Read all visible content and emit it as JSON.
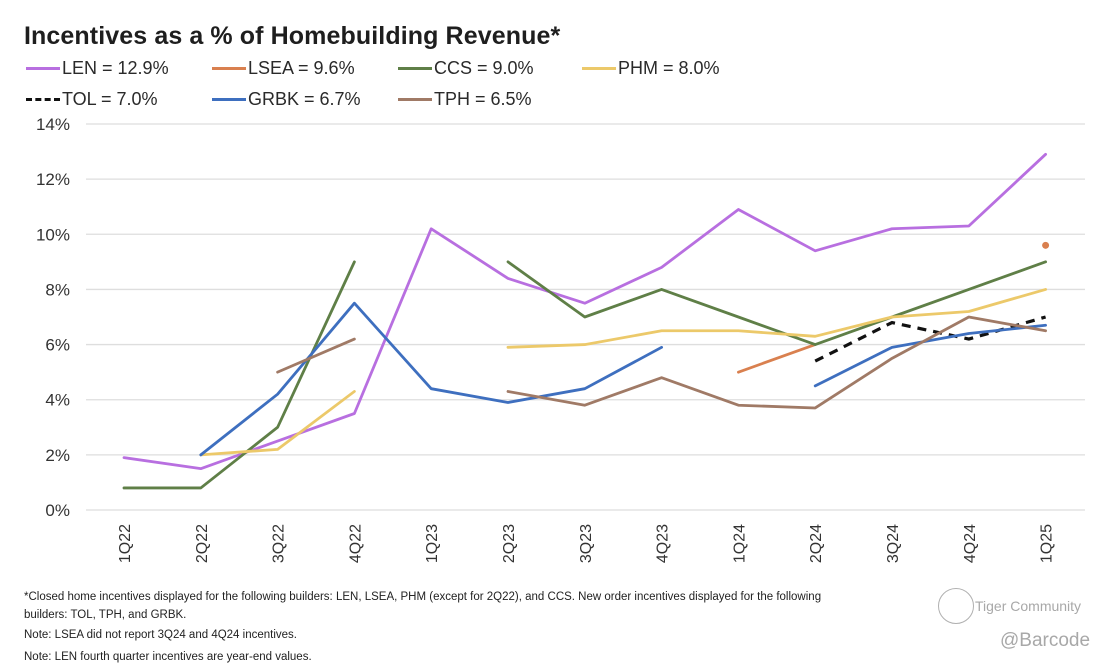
{
  "chart_data": {
    "type": "line",
    "title": "Incentives as a % of Homebuilding Revenue*",
    "xlabel": "",
    "ylabel": "",
    "categories": [
      "1Q22",
      "2Q22",
      "3Q22",
      "4Q22",
      "1Q23",
      "2Q23",
      "3Q23",
      "4Q23",
      "1Q24",
      "2Q24",
      "3Q24",
      "4Q24",
      "1Q25"
    ],
    "y_ticks": [
      "0%",
      "2%",
      "4%",
      "6%",
      "8%",
      "10%",
      "12%",
      "14%"
    ],
    "ylim": [
      0,
      14
    ],
    "grid": true,
    "legend_position": "top-left",
    "series": [
      {
        "name": "LEN",
        "legend": "LEN = 12.9%",
        "color": "#b86fe0",
        "dashed": false,
        "values": [
          1.9,
          1.5,
          2.5,
          3.5,
          10.2,
          8.4,
          7.5,
          8.8,
          10.9,
          9.4,
          10.2,
          10.3,
          12.9
        ]
      },
      {
        "name": "LSEA",
        "legend": "LSEA = 9.6%",
        "color": "#d9804f",
        "dashed": false,
        "values": [
          null,
          null,
          null,
          null,
          null,
          null,
          null,
          null,
          5.0,
          6.0,
          null,
          null,
          9.6
        ]
      },
      {
        "name": "CCS",
        "legend": "CCS = 9.0%",
        "color": "#5f7f47",
        "dashed": false,
        "values": [
          0.8,
          0.8,
          3.0,
          9.0,
          null,
          9.0,
          7.0,
          8.0,
          7.0,
          6.0,
          7.0,
          8.0,
          9.0
        ]
      },
      {
        "name": "PHM",
        "legend": "PHM = 8.0%",
        "color": "#ecc96a",
        "dashed": false,
        "values": [
          null,
          2.0,
          2.2,
          4.3,
          null,
          5.9,
          6.0,
          6.5,
          6.5,
          6.3,
          7.0,
          7.2,
          8.0
        ]
      },
      {
        "name": "TOL",
        "legend": "TOL = 7.0%",
        "color": "#111111",
        "dashed": true,
        "values": [
          null,
          null,
          null,
          null,
          null,
          null,
          null,
          null,
          null,
          5.4,
          6.8,
          6.2,
          7.0
        ]
      },
      {
        "name": "GRBK",
        "legend": "GRBK = 6.7%",
        "color": "#3e6fbf",
        "dashed": false,
        "values": [
          null,
          2.0,
          4.2,
          7.5,
          4.4,
          3.9,
          4.4,
          5.9,
          null,
          4.5,
          5.9,
          6.4,
          6.7
        ]
      },
      {
        "name": "TPH",
        "legend": "TPH = 6.5%",
        "color": "#a07a66",
        "dashed": false,
        "values": [
          null,
          null,
          5.0,
          6.2,
          null,
          4.3,
          3.8,
          4.8,
          3.8,
          3.7,
          5.5,
          7.0,
          6.5
        ]
      }
    ],
    "annotations": [
      "*Closed home incentives displayed for the following builders: LEN, LSEA, PHM (except for 2Q22), and CCS. New order incentives displayed for the following",
      "builders: TOL, TPH, and  GRBK.",
      "Note: LSEA did not report 3Q24 and 4Q24 incentives.",
      "Note: LEN fourth quarter incentives are year-end values."
    ]
  },
  "watermark": {
    "community": "Tiger Community",
    "handle": "@Barcode"
  }
}
